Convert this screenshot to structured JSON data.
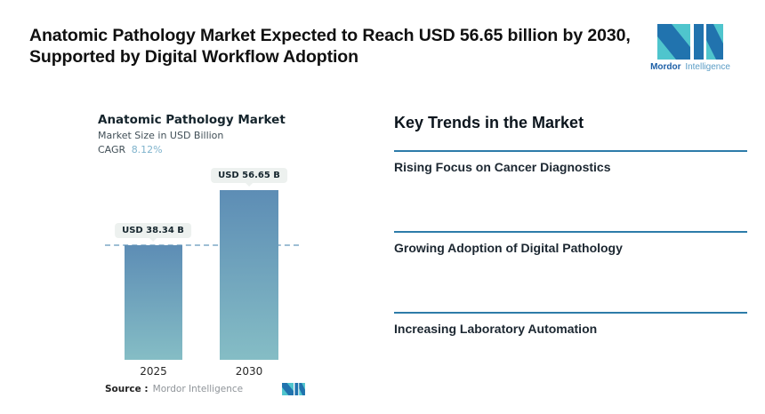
{
  "header": {
    "title": "Anatomic Pathology Market Expected to Reach USD 56.65 billion by 2030, Supported by Digital Workflow Adoption"
  },
  "brand": {
    "name_primary": "Mordor",
    "name_secondary": "Intelligence",
    "teal": "#4fc5cd",
    "blue": "#2173ae"
  },
  "chart": {
    "title": "Anatomic Pathology Market",
    "subtitle": "Market Size in USD Billion",
    "cagr_label": "CAGR",
    "cagr_value": "8.12%",
    "source_label": "Source :",
    "source_value": "Mordor Intelligence"
  },
  "chart_data": {
    "type": "bar",
    "title": "Anatomic Pathology Market",
    "ylabel": "Market Size in USD Billion",
    "unit": "USD Billion",
    "categories": [
      "2025",
      "2030"
    ],
    "values": [
      38.34,
      56.65
    ],
    "value_labels": [
      "USD 38.34 B",
      "USD 56.65 B"
    ],
    "cagr": "8.12%",
    "ylim": [
      0,
      56.65
    ],
    "grid": false,
    "baseline_dashed_at_value": 38.34,
    "bar_color_top": "#5d8db5",
    "bar_color_bottom": "#85bdc5",
    "dashed_line_color": "#9dbed4",
    "legend": "none"
  },
  "trends": {
    "heading": "Key Trends in the Market",
    "divider_color": "#2d7ca9",
    "items": [
      {
        "label": "Rising Focus on Cancer Diagnostics"
      },
      {
        "label": "Growing Adoption of Digital Pathology"
      },
      {
        "label": "Increasing Laboratory Automation"
      }
    ]
  }
}
